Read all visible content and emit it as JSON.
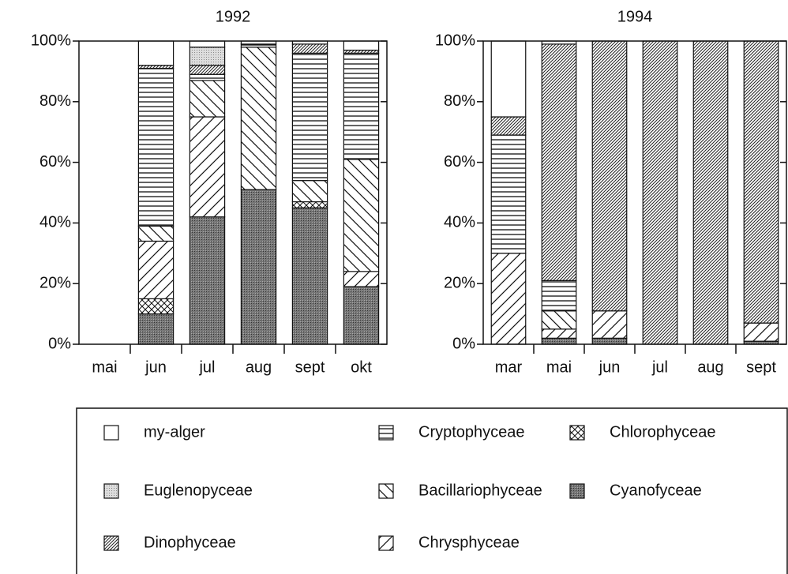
{
  "chart_data": [
    {
      "type": "bar",
      "stacked": true,
      "title": "1992",
      "categories": [
        "mai",
        "jun",
        "jul",
        "aug",
        "sept",
        "okt"
      ],
      "ylim": [
        0,
        100
      ],
      "yticks": [
        {
          "value": 0,
          "label": "0%"
        },
        {
          "value": 20,
          "label": "20%"
        },
        {
          "value": 40,
          "label": "40%"
        },
        {
          "value": 60,
          "label": "60%"
        },
        {
          "value": 80,
          "label": "80%"
        },
        {
          "value": 100,
          "label": "100%"
        }
      ],
      "series": [
        {
          "name": "my-alger",
          "pattern": "white",
          "values": [
            null,
            8,
            2,
            1,
            1,
            3
          ]
        },
        {
          "name": "Cryptophyceae",
          "pattern": "hlines",
          "values": [
            null,
            52,
            2,
            1,
            42,
            35
          ]
        },
        {
          "name": "Chlorophyceae",
          "pattern": "diamond",
          "values": [
            null,
            5,
            0,
            0,
            2,
            0
          ]
        },
        {
          "name": "Euglenopyceae",
          "pattern": "dots",
          "values": [
            null,
            0,
            6,
            0,
            0,
            0
          ]
        },
        {
          "name": "Bacillariophyceae",
          "pattern": "backslash",
          "values": [
            null,
            5,
            12,
            47,
            7,
            37
          ]
        },
        {
          "name": "Cyanofyceae",
          "pattern": "dark",
          "values": [
            null,
            10,
            42,
            51,
            45,
            19
          ]
        },
        {
          "name": "Dinophyceae",
          "pattern": "dense",
          "values": [
            null,
            1,
            3,
            0,
            3,
            1
          ]
        },
        {
          "name": "Chrysphyceae",
          "pattern": "slash",
          "values": [
            null,
            19,
            33,
            0,
            0,
            5
          ]
        }
      ]
    },
    {
      "type": "bar",
      "stacked": true,
      "title": "1994",
      "categories": [
        "mar",
        "mai",
        "jun",
        "jul",
        "aug",
        "sept"
      ],
      "ylim": [
        0,
        100
      ],
      "yticks": [
        {
          "value": 0,
          "label": "0%"
        },
        {
          "value": 20,
          "label": "20%"
        },
        {
          "value": 40,
          "label": "40%"
        },
        {
          "value": 60,
          "label": "60%"
        },
        {
          "value": 80,
          "label": "80%"
        },
        {
          "value": 100,
          "label": "100%"
        }
      ],
      "series": [
        {
          "name": "my-alger",
          "pattern": "white",
          "values": [
            25,
            1,
            0,
            0,
            0,
            0
          ]
        },
        {
          "name": "Cryptophyceae",
          "pattern": "hlines",
          "values": [
            39,
            10,
            0,
            0,
            0,
            0
          ]
        },
        {
          "name": "Chlorophyceae",
          "pattern": "diamond",
          "values": [
            0,
            0,
            0,
            0,
            0,
            0
          ]
        },
        {
          "name": "Euglenopyceae",
          "pattern": "dots",
          "values": [
            0,
            0,
            0,
            0,
            0,
            0
          ]
        },
        {
          "name": "Bacillariophyceae",
          "pattern": "backslash",
          "values": [
            0,
            6,
            0,
            0,
            0,
            0
          ]
        },
        {
          "name": "Cyanofyceae",
          "pattern": "dark",
          "values": [
            0,
            2,
            2,
            0,
            0,
            1
          ]
        },
        {
          "name": "Dinophyceae",
          "pattern": "dense",
          "values": [
            6,
            78,
            89,
            100,
            100,
            93
          ]
        },
        {
          "name": "Chrysphyceae",
          "pattern": "slash",
          "values": [
            30,
            3,
            9,
            0,
            0,
            6
          ]
        }
      ]
    }
  ]
}
